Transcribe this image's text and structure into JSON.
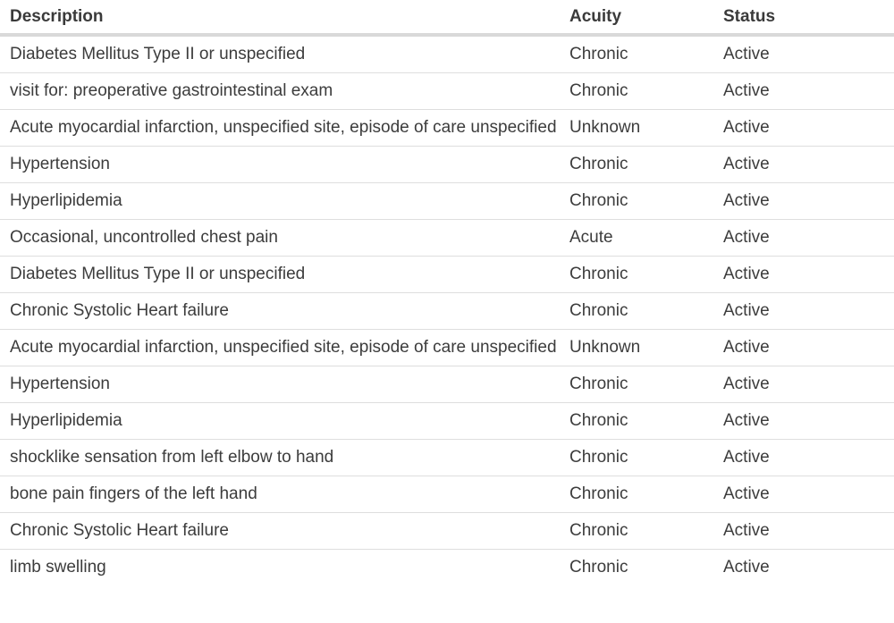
{
  "table": {
    "headers": {
      "description": "Description",
      "acuity": "Acuity",
      "status": "Status"
    },
    "rows": [
      {
        "description": "Diabetes Mellitus Type II or unspecified",
        "acuity": "Chronic",
        "status": "Active"
      },
      {
        "description": "visit for: preoperative gastrointestinal exam",
        "acuity": "Chronic",
        "status": "Active"
      },
      {
        "description": "Acute myocardial infarction, unspecified site, episode of care unspecified",
        "acuity": "Unknown",
        "status": "Active"
      },
      {
        "description": "Hypertension",
        "acuity": "Chronic",
        "status": "Active"
      },
      {
        "description": "Hyperlipidemia",
        "acuity": "Chronic",
        "status": "Active"
      },
      {
        "description": "Occasional, uncontrolled chest pain",
        "acuity": "Acute",
        "status": "Active"
      },
      {
        "description": "Diabetes Mellitus Type II or unspecified",
        "acuity": "Chronic",
        "status": "Active"
      },
      {
        "description": "Chronic Systolic Heart failure",
        "acuity": "Chronic",
        "status": "Active"
      },
      {
        "description": "Acute myocardial infarction, unspecified site, episode of care unspecified",
        "acuity": "Unknown",
        "status": "Active"
      },
      {
        "description": "Hypertension",
        "acuity": "Chronic",
        "status": "Active"
      },
      {
        "description": "Hyperlipidemia",
        "acuity": "Chronic",
        "status": "Active"
      },
      {
        "description": "shocklike sensation from left elbow to hand",
        "acuity": "Chronic",
        "status": "Active"
      },
      {
        "description": "bone pain fingers of the left hand",
        "acuity": "Chronic",
        "status": "Active"
      },
      {
        "description": "Chronic Systolic Heart failure",
        "acuity": "Chronic",
        "status": "Active"
      },
      {
        "description": "limb swelling",
        "acuity": "Chronic",
        "status": "Active"
      }
    ]
  }
}
